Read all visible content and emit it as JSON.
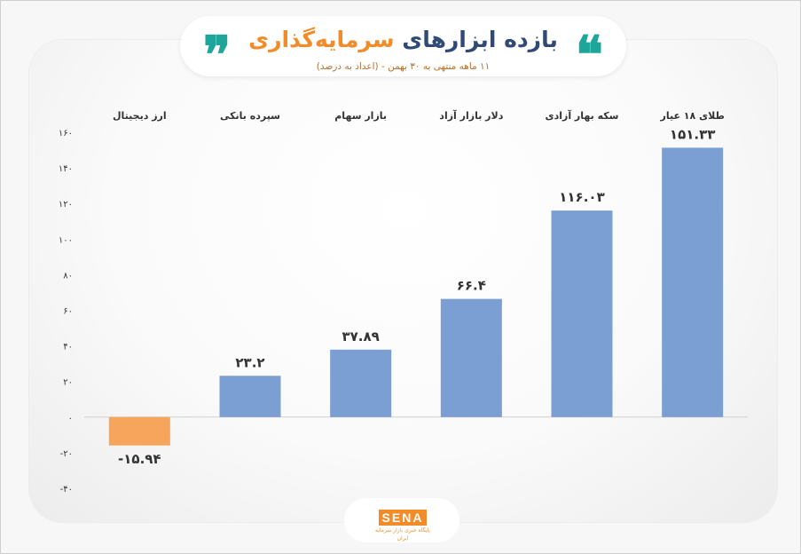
{
  "title": {
    "part1": "بازده ابزارهای",
    "part2": "سرمایه‌گذاری",
    "open_quote": "❝",
    "close_quote": "❞"
  },
  "subtitle": "۱۱ ماهه منتهی به ۳۰ بهمن - (اعداد به درصد)",
  "logo": {
    "name": "SENA",
    "tagline": "پایگاه خبری بازار سرمایه ایران"
  },
  "colors": {
    "positive_bar": "#7b9fd3",
    "negative_bar": "#f7a45c",
    "title_dark": "#2f4a74",
    "title_accent": "#f28c28",
    "quote": "#1fa69a"
  },
  "chart_data": {
    "type": "bar",
    "categories": [
      "ارز دیجیتال",
      "سپرده بانکی",
      "بازار سهام",
      "دلار بازار آزاد",
      "سکه بهار آزادی",
      "طلای ۱۸ عیار"
    ],
    "values": [
      -15.94,
      23.2,
      37.89,
      66.4,
      116.03,
      151.33
    ],
    "value_labels": [
      "-۱۵.۹۴",
      "۲۳.۲",
      "۳۷.۸۹",
      "۶۶.۴",
      "۱۱۶.۰۳",
      "۱۵۱.۳۳"
    ],
    "ylim": [
      -40,
      160
    ],
    "yticks": [
      -40,
      -20,
      0,
      20,
      40,
      60,
      80,
      100,
      120,
      140,
      160
    ],
    "ytick_labels": [
      "-۴۰",
      "-۲۰",
      "۰",
      "۲۰",
      "۴۰",
      "۶۰",
      "۸۰",
      "۱۰۰",
      "۱۲۰",
      "۱۴۰",
      "۱۶۰"
    ],
    "title": "بازده ابزارهای سرمایه‌گذاری",
    "xlabel": "",
    "ylabel": "",
    "grid": false,
    "legend": "none"
  }
}
